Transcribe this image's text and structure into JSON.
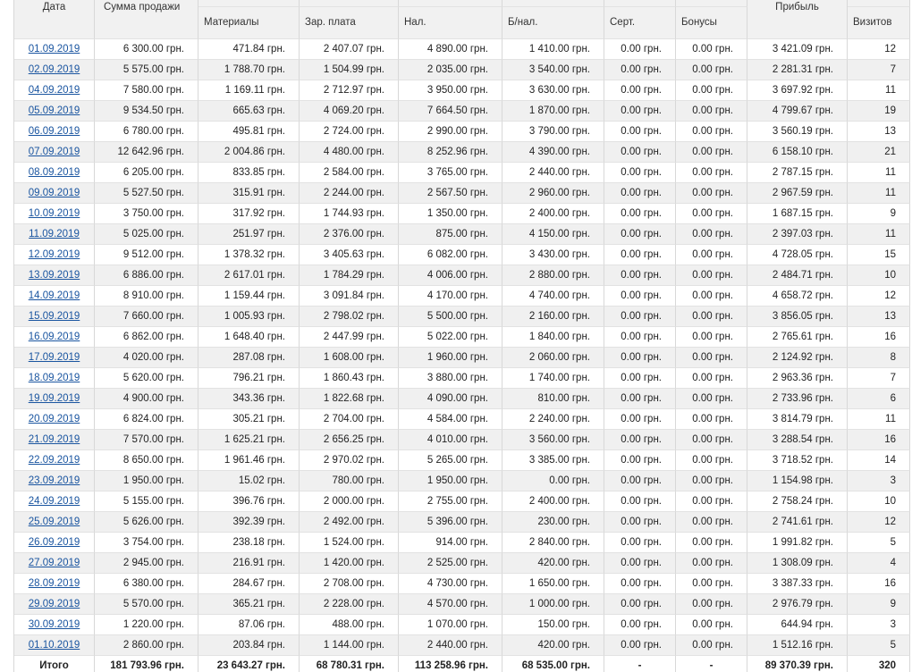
{
  "table": {
    "header": [
      "Дата",
      "Сумма продажи",
      "Материалы",
      "Зар. плата",
      "Нал.",
      "Б/нал.",
      "Серт.",
      "Бонусы",
      "Прибыль",
      "Визитов"
    ],
    "rows": [
      [
        "01.09.2019",
        "6 300.00 грн.",
        "471.84 грн.",
        "2 407.07 грн.",
        "4 890.00 грн.",
        "1 410.00 грн.",
        "0.00 грн.",
        "0.00 грн.",
        "3 421.09 грн.",
        "12"
      ],
      [
        "02.09.2019",
        "5 575.00 грн.",
        "1 788.70 грн.",
        "1 504.99 грн.",
        "2 035.00 грн.",
        "3 540.00 грн.",
        "0.00 грн.",
        "0.00 грн.",
        "2 281.31 грн.",
        "7"
      ],
      [
        "04.09.2019",
        "7 580.00 грн.",
        "1 169.11 грн.",
        "2 712.97 грн.",
        "3 950.00 грн.",
        "3 630.00 грн.",
        "0.00 грн.",
        "0.00 грн.",
        "3 697.92 грн.",
        "11"
      ],
      [
        "05.09.2019",
        "9 534.50 грн.",
        "665.63 грн.",
        "4 069.20 грн.",
        "7 664.50 грн.",
        "1 870.00 грн.",
        "0.00 грн.",
        "0.00 грн.",
        "4 799.67 грн.",
        "19"
      ],
      [
        "06.09.2019",
        "6 780.00 грн.",
        "495.81 грн.",
        "2 724.00 грн.",
        "2 990.00 грн.",
        "3 790.00 грн.",
        "0.00 грн.",
        "0.00 грн.",
        "3 560.19 грн.",
        "13"
      ],
      [
        "07.09.2019",
        "12 642.96 грн.",
        "2 004.86 грн.",
        "4 480.00 грн.",
        "8 252.96 грн.",
        "4 390.00 грн.",
        "0.00 грн.",
        "0.00 грн.",
        "6 158.10 грн.",
        "21"
      ],
      [
        "08.09.2019",
        "6 205.00 грн.",
        "833.85 грн.",
        "2 584.00 грн.",
        "3 765.00 грн.",
        "2 440.00 грн.",
        "0.00 грн.",
        "0.00 грн.",
        "2 787.15 грн.",
        "11"
      ],
      [
        "09.09.2019",
        "5 527.50 грн.",
        "315.91 грн.",
        "2 244.00 грн.",
        "2 567.50 грн.",
        "2 960.00 грн.",
        "0.00 грн.",
        "0.00 грн.",
        "2 967.59 грн.",
        "11"
      ],
      [
        "10.09.2019",
        "3 750.00 грн.",
        "317.92 грн.",
        "1 744.93 грн.",
        "1 350.00 грн.",
        "2 400.00 грн.",
        "0.00 грн.",
        "0.00 грн.",
        "1 687.15 грн.",
        "9"
      ],
      [
        "11.09.2019",
        "5 025.00 грн.",
        "251.97 грн.",
        "2 376.00 грн.",
        "875.00 грн.",
        "4 150.00 грн.",
        "0.00 грн.",
        "0.00 грн.",
        "2 397.03 грн.",
        "11"
      ],
      [
        "12.09.2019",
        "9 512.00 грн.",
        "1 378.32 грн.",
        "3 405.63 грн.",
        "6 082.00 грн.",
        "3 430.00 грн.",
        "0.00 грн.",
        "0.00 грн.",
        "4 728.05 грн.",
        "15"
      ],
      [
        "13.09.2019",
        "6 886.00 грн.",
        "2 617.01 грн.",
        "1 784.29 грн.",
        "4 006.00 грн.",
        "2 880.00 грн.",
        "0.00 грн.",
        "0.00 грн.",
        "2 484.71 грн.",
        "10"
      ],
      [
        "14.09.2019",
        "8 910.00 грн.",
        "1 159.44 грн.",
        "3 091.84 грн.",
        "4 170.00 грн.",
        "4 740.00 грн.",
        "0.00 грн.",
        "0.00 грн.",
        "4 658.72 грн.",
        "12"
      ],
      [
        "15.09.2019",
        "7 660.00 грн.",
        "1 005.93 грн.",
        "2 798.02 грн.",
        "5 500.00 грн.",
        "2 160.00 грн.",
        "0.00 грн.",
        "0.00 грн.",
        "3 856.05 грн.",
        "13"
      ],
      [
        "16.09.2019",
        "6 862.00 грн.",
        "1 648.40 грн.",
        "2 447.99 грн.",
        "5 022.00 грн.",
        "1 840.00 грн.",
        "0.00 грн.",
        "0.00 грн.",
        "2 765.61 грн.",
        "16"
      ],
      [
        "17.09.2019",
        "4 020.00 грн.",
        "287.08 грн.",
        "1 608.00 грн.",
        "1 960.00 грн.",
        "2 060.00 грн.",
        "0.00 грн.",
        "0.00 грн.",
        "2 124.92 грн.",
        "8"
      ],
      [
        "18.09.2019",
        "5 620.00 грн.",
        "796.21 грн.",
        "1 860.43 грн.",
        "3 880.00 грн.",
        "1 740.00 грн.",
        "0.00 грн.",
        "0.00 грн.",
        "2 963.36 грн.",
        "7"
      ],
      [
        "19.09.2019",
        "4 900.00 грн.",
        "343.36 грн.",
        "1 822.68 грн.",
        "4 090.00 грн.",
        "810.00 грн.",
        "0.00 грн.",
        "0.00 грн.",
        "2 733.96 грн.",
        "6"
      ],
      [
        "20.09.2019",
        "6 824.00 грн.",
        "305.21 грн.",
        "2 704.00 грн.",
        "4 584.00 грн.",
        "2 240.00 грн.",
        "0.00 грн.",
        "0.00 грн.",
        "3 814.79 грн.",
        "11"
      ],
      [
        "21.09.2019",
        "7 570.00 грн.",
        "1 625.21 грн.",
        "2 656.25 грн.",
        "4 010.00 грн.",
        "3 560.00 грн.",
        "0.00 грн.",
        "0.00 грн.",
        "3 288.54 грн.",
        "16"
      ],
      [
        "22.09.2019",
        "8 650.00 грн.",
        "1 961.46 грн.",
        "2 970.02 грн.",
        "5 265.00 грн.",
        "3 385.00 грн.",
        "0.00 грн.",
        "0.00 грн.",
        "3 718.52 грн.",
        "14"
      ],
      [
        "23.09.2019",
        "1 950.00 грн.",
        "15.02 грн.",
        "780.00 грн.",
        "1 950.00 грн.",
        "0.00 грн.",
        "0.00 грн.",
        "0.00 грн.",
        "1 154.98 грн.",
        "3"
      ],
      [
        "24.09.2019",
        "5 155.00 грн.",
        "396.76 грн.",
        "2 000.00 грн.",
        "2 755.00 грн.",
        "2 400.00 грн.",
        "0.00 грн.",
        "0.00 грн.",
        "2 758.24 грн.",
        "10"
      ],
      [
        "25.09.2019",
        "5 626.00 грн.",
        "392.39 грн.",
        "2 492.00 грн.",
        "5 396.00 грн.",
        "230.00 грн.",
        "0.00 грн.",
        "0.00 грн.",
        "2 741.61 грн.",
        "12"
      ],
      [
        "26.09.2019",
        "3 754.00 грн.",
        "238.18 грн.",
        "1 524.00 грн.",
        "914.00 грн.",
        "2 840.00 грн.",
        "0.00 грн.",
        "0.00 грн.",
        "1 991.82 грн.",
        "5"
      ],
      [
        "27.09.2019",
        "2 945.00 грн.",
        "216.91 грн.",
        "1 420.00 грн.",
        "2 525.00 грн.",
        "420.00 грн.",
        "0.00 грн.",
        "0.00 грн.",
        "1 308.09 грн.",
        "4"
      ],
      [
        "28.09.2019",
        "6 380.00 грн.",
        "284.67 грн.",
        "2 708.00 грн.",
        "4 730.00 грн.",
        "1 650.00 грн.",
        "0.00 грн.",
        "0.00 грн.",
        "3 387.33 грн.",
        "16"
      ],
      [
        "29.09.2019",
        "5 570.00 грн.",
        "365.21 грн.",
        "2 228.00 грн.",
        "4 570.00 грн.",
        "1 000.00 грн.",
        "0.00 грн.",
        "0.00 грн.",
        "2 976.79 грн.",
        "9"
      ],
      [
        "30.09.2019",
        "1 220.00 грн.",
        "87.06 грн.",
        "488.00 грн.",
        "1 070.00 грн.",
        "150.00 грн.",
        "0.00 грн.",
        "0.00 грн.",
        "644.94 грн.",
        "3"
      ],
      [
        "01.10.2019",
        "2 860.00 грн.",
        "203.84 грн.",
        "1 144.00 грн.",
        "2 440.00 грн.",
        "420.00 грн.",
        "0.00 грн.",
        "0.00 грн.",
        "1 512.16 грн.",
        "5"
      ]
    ],
    "total": [
      "Итого",
      "181 793.96 грн.",
      "23 643.27 грн.",
      "68 780.31 грн.",
      "113 258.96 грн.",
      "68 535.00 грн.",
      "-",
      "-",
      "89 370.39 грн.",
      "320"
    ]
  }
}
